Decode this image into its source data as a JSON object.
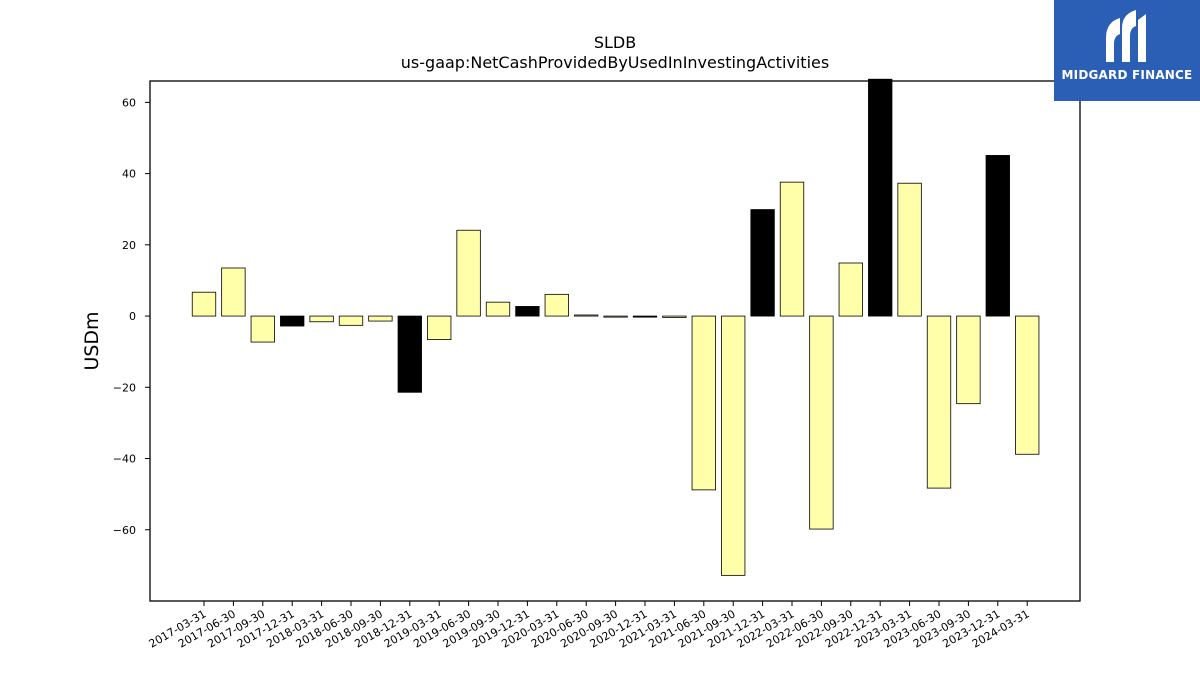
{
  "chart_data": {
    "type": "bar",
    "title": "SLDB",
    "subtitle": "us-gaap:NetCashProvidedByUsedInInvestingActivities",
    "ylabel": "USDm",
    "xlabel": "",
    "ylim": [
      -80,
      66
    ],
    "yticks": [
      -60,
      -40,
      -20,
      0,
      20,
      40,
      60
    ],
    "grid": false,
    "colors": {
      "positive_fill": "#ffffaa",
      "highlight_fill": "#000000",
      "edge": "#000000"
    },
    "categories": [
      "2017-03-31",
      "2017-06-30",
      "2017-09-30",
      "2017-12-31",
      "2018-03-31",
      "2018-06-30",
      "2018-09-30",
      "2018-12-31",
      "2019-03-31",
      "2019-06-30",
      "2019-09-30",
      "2019-12-31",
      "2020-03-31",
      "2020-06-30",
      "2020-09-30",
      "2020-12-31",
      "2021-03-31",
      "2021-06-30",
      "2021-09-30",
      "2021-12-31",
      "2022-03-31",
      "2022-06-30",
      "2022-09-30",
      "2022-12-31",
      "2023-03-31",
      "2023-06-30",
      "2023-09-30",
      "2023-12-31",
      "2024-03-31"
    ],
    "values": [
      6.7,
      13.5,
      -7.3,
      -2.8,
      -1.6,
      -2.6,
      -1.4,
      -21.4,
      -6.6,
      24.1,
      3.9,
      2.7,
      6.1,
      0.3,
      -0.3,
      -0.3,
      -0.4,
      -48.8,
      -72.8,
      29.9,
      37.6,
      -59.8,
      14.9,
      66.5,
      37.3,
      -48.3,
      -24.6,
      45.1,
      -38.8
    ],
    "highlight": [
      false,
      false,
      false,
      true,
      false,
      false,
      false,
      true,
      false,
      false,
      false,
      true,
      false,
      false,
      false,
      true,
      false,
      false,
      false,
      true,
      false,
      false,
      false,
      true,
      false,
      false,
      false,
      true,
      false
    ]
  },
  "logo": {
    "text": "MIDGARD FINANCE",
    "color": "#2b5fb6"
  }
}
